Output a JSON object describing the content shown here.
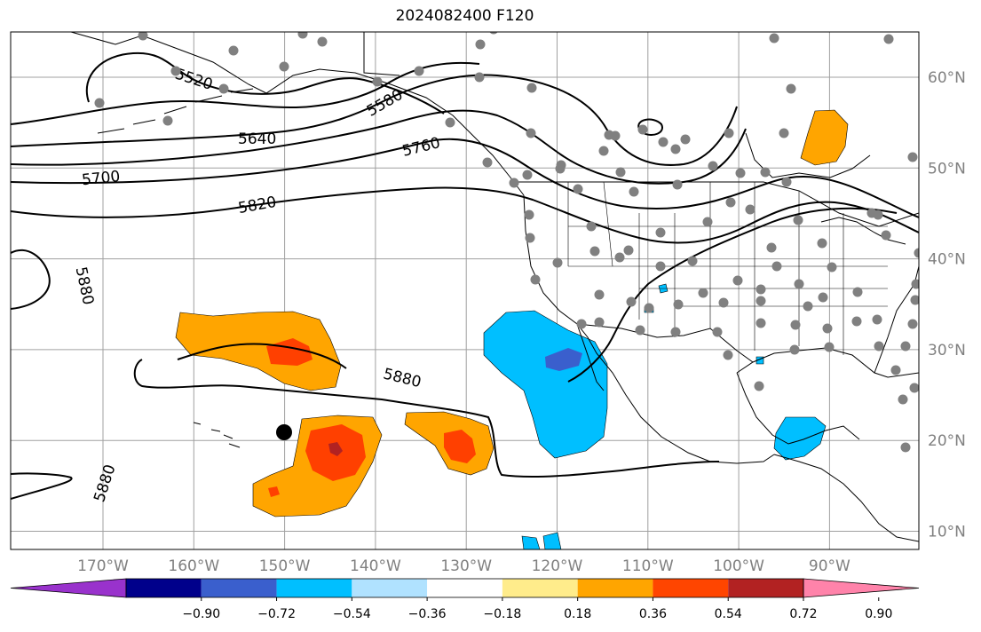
{
  "title": "2024082400 F120",
  "map": {
    "lat_labels": [
      {
        "lat": 60,
        "text": "60°N"
      },
      {
        "lat": 50,
        "text": "50°N"
      },
      {
        "lat": 40,
        "text": "40°N"
      },
      {
        "lat": 30,
        "text": "30°N"
      },
      {
        "lat": 20,
        "text": "20°N"
      },
      {
        "lat": 10,
        "text": "10°N"
      }
    ],
    "lon_labels": [
      {
        "lon": -170,
        "text": "170°W"
      },
      {
        "lon": -160,
        "text": "160°W"
      },
      {
        "lon": -150,
        "text": "150°W"
      },
      {
        "lon": -140,
        "text": "140°W"
      },
      {
        "lon": -130,
        "text": "130°W"
      },
      {
        "lon": -120,
        "text": "120°W"
      },
      {
        "lon": -110,
        "text": "110°W"
      },
      {
        "lon": -100,
        "text": "100°W"
      },
      {
        "lon": -90,
        "text": "90°W"
      }
    ],
    "contour_labels": [
      "5520",
      "5580",
      "5640",
      "5700",
      "5760",
      "5820",
      "5880",
      "5880",
      "5880"
    ],
    "colors": {
      "land_outline": "#000000",
      "grid": "#a0a0a0",
      "station_dot": "#808080",
      "marker_dot": "#000000",
      "fill_orange": "#ffa500",
      "fill_red_orange": "#ff4000",
      "fill_dark_red": "#b22222",
      "fill_light_blue": "#00bfff",
      "fill_blue": "#3a5fcd"
    }
  },
  "colorbar": {
    "ticks": [
      "−0.90",
      "−0.72",
      "−0.54",
      "−0.36",
      "−0.18",
      "0.18",
      "0.36",
      "0.54",
      "0.72",
      "0.90"
    ],
    "colors": [
      "#9932cc",
      "#00008b",
      "#3a5fcd",
      "#00bfff",
      "#b0e2ff",
      "#ffffff",
      "#ffec8b",
      "#ffa500",
      "#ff4500",
      "#b22222",
      "#ff83aa"
    ]
  }
}
